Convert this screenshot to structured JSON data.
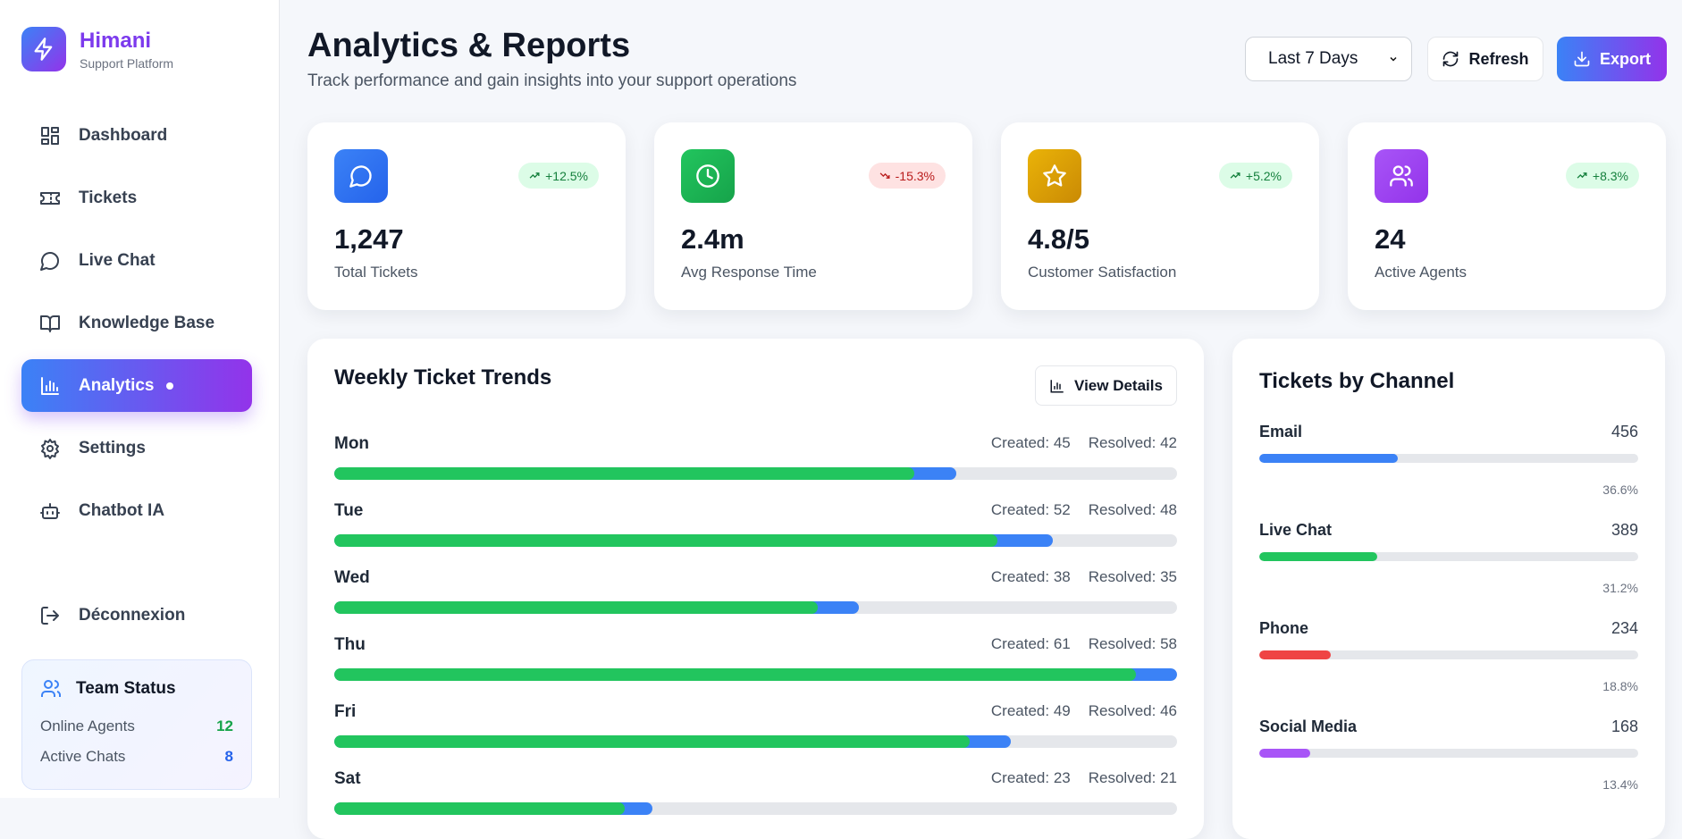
{
  "brand": {
    "name": "Himani",
    "subtitle": "Support Platform"
  },
  "nav": [
    {
      "label": "Dashboard",
      "icon": "dashboard-icon"
    },
    {
      "label": "Tickets",
      "icon": "ticket-icon"
    },
    {
      "label": "Live Chat",
      "icon": "chat-icon"
    },
    {
      "label": "Knowledge Base",
      "icon": "book-icon"
    },
    {
      "label": "Analytics",
      "icon": "analytics-icon",
      "active": true
    },
    {
      "label": "Settings",
      "icon": "gear-icon"
    },
    {
      "label": "Chatbot IA",
      "icon": "bot-icon"
    }
  ],
  "logout": "Déconnexion",
  "team": {
    "title": "Team Status",
    "online_label": "Online Agents",
    "online": "12",
    "chats_label": "Active Chats",
    "chats": "8",
    "online_color": "#16a34a",
    "chats_color": "#2563eb"
  },
  "header": {
    "title": "Analytics & Reports",
    "subtitle": "Track performance and gain insights into your support operations",
    "range": "Last 7 Days",
    "refresh": "Refresh",
    "export": "Export"
  },
  "stats": [
    {
      "value": "1,247",
      "label": "Total Tickets",
      "change": "+12.5%",
      "trend": "up",
      "color": "#3b82f6",
      "icon": "message-icon"
    },
    {
      "value": "2.4m",
      "label": "Avg Response Time",
      "change": "-15.3%",
      "trend": "down",
      "color": "#22c55e",
      "icon": "clock-icon"
    },
    {
      "value": "4.8/5",
      "label": "Customer Satisfaction",
      "change": "+5.2%",
      "trend": "up",
      "color": "#eab308",
      "icon": "star-icon"
    },
    {
      "value": "24",
      "label": "Active Agents",
      "change": "+8.3%",
      "trend": "up",
      "color": "#a855f7",
      "icon": "users-icon"
    }
  ],
  "weekly": {
    "title": "Weekly Ticket Trends",
    "view_details": "View Details",
    "max": 61,
    "created_prefix": "Created:",
    "resolved_prefix": "Resolved:",
    "days": [
      {
        "day": "Mon",
        "created": 45,
        "resolved": 42
      },
      {
        "day": "Tue",
        "created": 52,
        "resolved": 48
      },
      {
        "day": "Wed",
        "created": 38,
        "resolved": 35
      },
      {
        "day": "Thu",
        "created": 61,
        "resolved": 58
      },
      {
        "day": "Fri",
        "created": 49,
        "resolved": 46
      },
      {
        "day": "Sat",
        "created": 23,
        "resolved": 21
      }
    ]
  },
  "channels": {
    "title": "Tickets by Channel",
    "items": [
      {
        "name": "Email",
        "count": "456",
        "pct": 36.6,
        "pct_label": "36.6%",
        "color": "#3b82f6"
      },
      {
        "name": "Live Chat",
        "count": "389",
        "pct": 31.2,
        "pct_label": "31.2%",
        "color": "#22c55e"
      },
      {
        "name": "Phone",
        "count": "234",
        "pct": 18.8,
        "pct_label": "18.8%",
        "color": "#ef4444"
      },
      {
        "name": "Social Media",
        "count": "168",
        "pct": 13.4,
        "pct_label": "13.4%",
        "color": "#a855f7"
      }
    ]
  }
}
